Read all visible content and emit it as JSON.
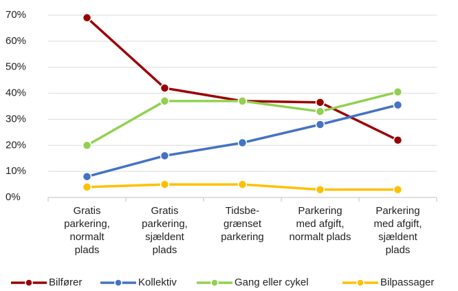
{
  "chart_data": {
    "type": "line",
    "categories": [
      [
        "Gratis",
        "parkering,",
        "normalt",
        "plads"
      ],
      [
        "Gratis",
        "parkering,",
        "sjældent",
        "plads"
      ],
      [
        "Tidsbe-",
        "grænset",
        "parkering"
      ],
      [
        "Parkering",
        "med afgift,",
        "normalt plads"
      ],
      [
        "Parkering",
        "med afgift,",
        "sjældent",
        "plads"
      ]
    ],
    "series": [
      {
        "name": "Bilfører",
        "color": "#990000",
        "values": [
          69,
          42,
          37,
          36.5,
          22
        ]
      },
      {
        "name": "Kollektiv",
        "color": "#4472c4",
        "values": [
          8,
          16,
          21,
          28,
          35.5
        ]
      },
      {
        "name": "Gang eller cykel",
        "color": "#92d050",
        "values": [
          20,
          37,
          37,
          33,
          40.5
        ]
      },
      {
        "name": "Bilpassager",
        "color": "#ffc000",
        "values": [
          4,
          5,
          5,
          3,
          3
        ]
      }
    ],
    "ylim": [
      0,
      70
    ],
    "yticks": [
      {
        "value": 0,
        "label": "0%"
      },
      {
        "value": 10,
        "label": "10%"
      },
      {
        "value": 20,
        "label": "20%"
      },
      {
        "value": 30,
        "label": "30%"
      },
      {
        "value": 40,
        "label": "40%"
      },
      {
        "value": 50,
        "label": "50%"
      },
      {
        "value": 60,
        "label": "60%"
      },
      {
        "value": 70,
        "label": "70%"
      }
    ],
    "grid": true,
    "legend": "bottom"
  }
}
